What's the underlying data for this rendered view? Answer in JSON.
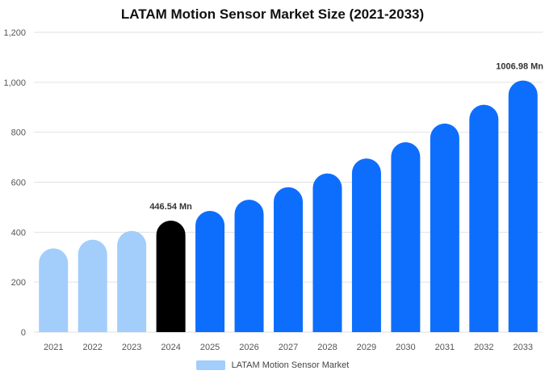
{
  "chart_data": {
    "type": "bar",
    "title": "LATAM Motion Sensor Market Size (2021-2033)",
    "xlabel": "",
    "ylabel": "",
    "categories": [
      "2021",
      "2022",
      "2023",
      "2024",
      "2025",
      "2026",
      "2027",
      "2028",
      "2029",
      "2030",
      "2031",
      "2032",
      "2033"
    ],
    "series": [
      {
        "name": "LATAM Motion Sensor Market",
        "values": [
          335,
          370,
          405,
          446.54,
          485,
          530,
          580,
          635,
          695,
          760,
          835,
          910,
          1006.98
        ]
      }
    ],
    "ylim": [
      0,
      1200
    ],
    "yticks": [
      0,
      200,
      400,
      600,
      800,
      1000,
      1200
    ],
    "ytick_labels": [
      "0",
      "200",
      "400",
      "600",
      "800",
      "1,000",
      "1,200"
    ],
    "data_labels": [
      {
        "category": "2024",
        "text": "446.54 Mn"
      },
      {
        "category": "2033",
        "text": "1006.98 Mn"
      }
    ],
    "grid": true,
    "legend_position": "bottom",
    "colors": {
      "historical": "#a3cdfb",
      "current": "#000000",
      "forecast": "#0d6efd",
      "grid": "#e2e2e2",
      "legend_swatch": "#a3cdfb"
    },
    "current_category": "2024"
  }
}
